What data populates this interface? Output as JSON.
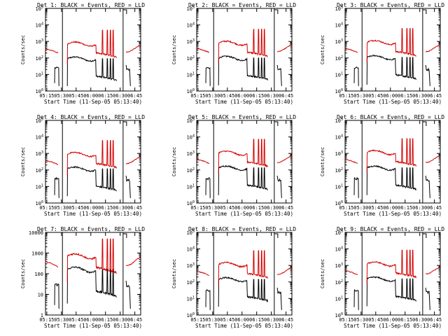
{
  "chart_data": [
    {
      "type": "line",
      "title": "Det 1: BLACK = Events, RED = LLD",
      "xlabel": "Start Time (11-Sep-05 05:13:40)",
      "ylabel": "Counts/sec",
      "y_scale": "log",
      "ylim": [
        1,
        100000
      ],
      "ytick_labels": [
        "10^0",
        "10^1",
        "10^2",
        "10^3",
        "10^4",
        "10^5"
      ],
      "xtick_labels": [
        "05:15",
        "05:30",
        "05:45",
        "06:00",
        "06:15",
        "06:30",
        "06:45"
      ],
      "xlim": [
        "05:13:40",
        "06:51"
      ],
      "markers": [
        "05:31",
        "06:33"
      ],
      "series": [
        {
          "name": "Events",
          "color": "#000000",
          "level": 100,
          "pre_level": 25
        },
        {
          "name": "LLD",
          "color": "#d40000",
          "level": 800,
          "pre_level": 280
        }
      ]
    },
    {
      "type": "line",
      "title": "Det 2: BLACK = Events, RED = LLD",
      "xlabel": "Start Time (11-Sep-05 05:13:40)",
      "ylabel": "Counts/sec",
      "y_scale": "log",
      "ylim": [
        1,
        100000
      ],
      "ytick_labels": [
        "10^0",
        "10^1",
        "10^2",
        "10^3",
        "10^4",
        "10^5"
      ],
      "xtick_labels": [
        "05:15",
        "05:30",
        "05:45",
        "06:00",
        "06:15",
        "06:30",
        "06:45"
      ],
      "xlim": [
        "05:13:40",
        "06:51"
      ],
      "markers": [
        "05:31",
        "06:33"
      ],
      "series": [
        {
          "name": "Events",
          "color": "#000000",
          "level": 110,
          "pre_level": 25
        },
        {
          "name": "LLD",
          "color": "#d40000",
          "level": 900,
          "pre_level": 300
        }
      ]
    },
    {
      "type": "line",
      "title": "Det 3: BLACK = Events, RED = LLD",
      "xlabel": "Start Time (11-Sep-05 05:13:40)",
      "ylabel": "Counts/sec",
      "y_scale": "log",
      "ylim": [
        1,
        100000
      ],
      "ytick_labels": [
        "10^0",
        "10^1",
        "10^2",
        "10^3",
        "10^4",
        "10^5"
      ],
      "xtick_labels": [
        "05:15",
        "05:30",
        "05:45",
        "06:00",
        "06:15",
        "06:30",
        "06:45"
      ],
      "xlim": [
        "05:13:40",
        "06:51"
      ],
      "markers": [
        "05:31",
        "06:33"
      ],
      "series": [
        {
          "name": "Events",
          "color": "#000000",
          "level": 120,
          "pre_level": 25
        },
        {
          "name": "LLD",
          "color": "#d40000",
          "level": 1000,
          "pre_level": 300
        }
      ]
    },
    {
      "type": "line",
      "title": "Det 4: BLACK = Events, RED = LLD",
      "xlabel": "Start Time (11-Sep-05 05:13:40)",
      "ylabel": "Counts/sec",
      "y_scale": "log",
      "ylim": [
        1,
        100000
      ],
      "ytick_labels": [
        "10^0",
        "10^1",
        "10^2",
        "10^3",
        "10^4",
        "10^5"
      ],
      "xtick_labels": [
        "05:15",
        "05:30",
        "05:45",
        "06:00",
        "06:15",
        "06:30",
        "06:45"
      ],
      "xlim": [
        "05:13:40",
        "06:51"
      ],
      "markers": [
        "05:31",
        "06:33"
      ],
      "series": [
        {
          "name": "Events",
          "color": "#000000",
          "level": 130,
          "pre_level": 30
        },
        {
          "name": "LLD",
          "color": "#d40000",
          "level": 1000,
          "pre_level": 300
        }
      ]
    },
    {
      "type": "line",
      "title": "Det 5: BLACK = Events, RED = LLD",
      "xlabel": "Start Time (11-Sep-05 05:13:40)",
      "ylabel": "Counts/sec",
      "y_scale": "log",
      "ylim": [
        1,
        100000
      ],
      "ytick_labels": [
        "10^0",
        "10^1",
        "10^2",
        "10^3",
        "10^4",
        "10^5"
      ],
      "xtick_labels": [
        "05:15",
        "05:30",
        "05:45",
        "06:00",
        "06:15",
        "06:30",
        "06:45"
      ],
      "xlim": [
        "05:13:40",
        "06:51"
      ],
      "markers": [
        "05:31",
        "06:33"
      ],
      "series": [
        {
          "name": "Events",
          "color": "#000000",
          "level": 150,
          "pre_level": 30
        },
        {
          "name": "LLD",
          "color": "#d40000",
          "level": 1200,
          "pre_level": 350
        }
      ]
    },
    {
      "type": "line",
      "title": "Det 6: BLACK = Events, RED = LLD",
      "xlabel": "Start Time (11-Sep-05 05:13:40)",
      "ylabel": "Counts/sec",
      "y_scale": "log",
      "ylim": [
        1,
        100000
      ],
      "ytick_labels": [
        "10^0",
        "10^1",
        "10^2",
        "10^3",
        "10^4",
        "10^5"
      ],
      "xtick_labels": [
        "05:15",
        "05:30",
        "05:45",
        "06:00",
        "06:15",
        "06:30",
        "06:45"
      ],
      "xlim": [
        "05:13:40",
        "06:51"
      ],
      "markers": [
        "05:31",
        "06:33"
      ],
      "series": [
        {
          "name": "Events",
          "color": "#000000",
          "level": 150,
          "pre_level": 30
        },
        {
          "name": "LLD",
          "color": "#d40000",
          "level": 1300,
          "pre_level": 350
        }
      ]
    },
    {
      "type": "line",
      "title": "Det 7: BLACK = Events, RED = LLD",
      "xlabel": "Start Time (11-Sep-05 05:13:40)",
      "ylabel": "Counts/sec",
      "y_scale": "log",
      "ylim": [
        1,
        10000
      ],
      "ytick_labels": [
        "1",
        "10",
        "100",
        "1000",
        "10000"
      ],
      "xtick_labels": [
        "05:15",
        "05:30",
        "05:45",
        "06:00",
        "06:15",
        "06:30",
        "06:45"
      ],
      "xlim": [
        "05:13:40",
        "06:51"
      ],
      "markers": [
        "05:31",
        "06:33"
      ],
      "series": [
        {
          "name": "Events",
          "color": "#000000",
          "level": 180,
          "pre_level": 30
        },
        {
          "name": "LLD",
          "color": "#d40000",
          "level": 800,
          "pre_level": 300
        }
      ]
    },
    {
      "type": "line",
      "title": "Det 8: BLACK = Events, RED = LLD",
      "xlabel": "Start Time (11-Sep-05 05:13:40)",
      "ylabel": "Counts/sec",
      "y_scale": "log",
      "ylim": [
        1,
        100000
      ],
      "ytick_labels": [
        "10^0",
        "10^1",
        "10^2",
        "10^3",
        "10^4",
        "10^5"
      ],
      "xtick_labels": [
        "05:15",
        "05:30",
        "05:45",
        "06:00",
        "06:15",
        "06:30",
        "06:45"
      ],
      "xlim": [
        "05:13:40",
        "06:51"
      ],
      "markers": [
        "05:31",
        "06:33"
      ],
      "series": [
        {
          "name": "Events",
          "color": "#000000",
          "level": 160,
          "pre_level": 30
        },
        {
          "name": "LLD",
          "color": "#d40000",
          "level": 1300,
          "pre_level": 350
        }
      ]
    },
    {
      "type": "line",
      "title": "Det 9: BLACK = Events, RED = LLD",
      "xlabel": "Start Time (11-Sep-05 05:13:40)",
      "ylabel": "Counts/sec",
      "y_scale": "log",
      "ylim": [
        1,
        100000
      ],
      "ytick_labels": [
        "10^0",
        "10^1",
        "10^2",
        "10^3",
        "10^4",
        "10^5"
      ],
      "xtick_labels": [
        "05:15",
        "05:30",
        "05:45",
        "06:00",
        "06:15",
        "06:30",
        "06:45"
      ],
      "xlim": [
        "05:13:40",
        "06:51"
      ],
      "markers": [
        "05:31",
        "06:33"
      ],
      "series": [
        {
          "name": "Events",
          "color": "#000000",
          "level": 170,
          "pre_level": 30
        },
        {
          "name": "LLD",
          "color": "#d40000",
          "level": 1400,
          "pre_level": 380
        }
      ]
    }
  ]
}
